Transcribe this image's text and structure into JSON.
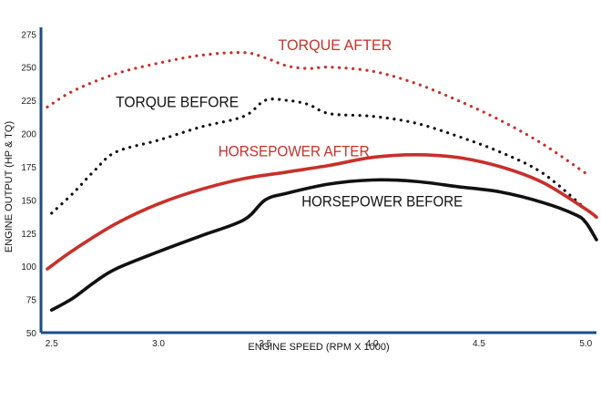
{
  "chart_data": {
    "type": "line",
    "xlabel": "ENGINE SPEED (RPM X 1000)",
    "ylabel": "ENGINE OUTPUT (HP & TQ)",
    "xlim": [
      2.45,
      5.05
    ],
    "ylim": [
      50,
      280
    ],
    "x_ticks": [
      "2.5",
      "3.0",
      "3.5",
      "4.0",
      "4.5",
      "5.0"
    ],
    "y_ticks": [
      "50",
      "75",
      "100",
      "125",
      "150",
      "175",
      "200",
      "225",
      "250",
      "275"
    ],
    "colors": {
      "after": "#c8302a",
      "before": "#111111",
      "axis": "#1a4e8a"
    },
    "series": [
      {
        "name": "TORQUE AFTER",
        "color": "#c8302a",
        "style": "dotted",
        "x": [
          2.48,
          2.6,
          2.8,
          3.0,
          3.2,
          3.4,
          3.5,
          3.6,
          3.7,
          3.8,
          4.0,
          4.2,
          4.4,
          4.6,
          4.8,
          5.0
        ],
        "y": [
          220,
          232,
          245,
          253,
          259,
          261,
          257,
          251,
          249,
          250,
          247,
          238,
          225,
          210,
          192,
          170
        ]
      },
      {
        "name": "TORQUE BEFORE",
        "color": "#111111",
        "style": "dotted",
        "x": [
          2.5,
          2.6,
          2.7,
          2.8,
          3.0,
          3.2,
          3.4,
          3.5,
          3.6,
          3.7,
          3.8,
          4.0,
          4.2,
          4.4,
          4.6,
          4.8,
          5.0
        ],
        "y": [
          140,
          155,
          172,
          186,
          195,
          205,
          213,
          225,
          225,
          222,
          215,
          213,
          208,
          198,
          186,
          170,
          143
        ]
      },
      {
        "name": "HORSEPOWER AFTER",
        "color": "#c8302a",
        "style": "solid",
        "x": [
          2.48,
          2.6,
          2.8,
          3.0,
          3.2,
          3.4,
          3.6,
          3.8,
          4.0,
          4.2,
          4.4,
          4.6,
          4.8,
          5.0,
          5.05
        ],
        "y": [
          98,
          112,
          132,
          147,
          158,
          166,
          171,
          176,
          182,
          184,
          182,
          175,
          163,
          143,
          137
        ]
      },
      {
        "name": "HORSEPOWER BEFORE",
        "color": "#111111",
        "style": "solid",
        "x": [
          2.5,
          2.6,
          2.7,
          2.8,
          3.0,
          3.2,
          3.4,
          3.5,
          3.6,
          3.8,
          4.0,
          4.2,
          4.4,
          4.6,
          4.8,
          4.95,
          5.0,
          5.05
        ],
        "y": [
          67,
          76,
          88,
          98,
          111,
          123,
          135,
          150,
          155,
          162,
          165,
          164,
          160,
          156,
          148,
          139,
          133,
          120
        ]
      }
    ],
    "labels": [
      {
        "text": "TORQUE AFTER",
        "x": 3.56,
        "y": 263,
        "color": "#c8302a"
      },
      {
        "text": "TORQUE BEFORE",
        "x": 2.8,
        "y": 220,
        "color": "#111111"
      },
      {
        "text": "HORSEPOWER AFTER",
        "x": 3.28,
        "y": 183,
        "color": "#c8302a"
      },
      {
        "text": "HORSEPOWER BEFORE",
        "x": 3.67,
        "y": 145,
        "color": "#111111"
      }
    ]
  }
}
